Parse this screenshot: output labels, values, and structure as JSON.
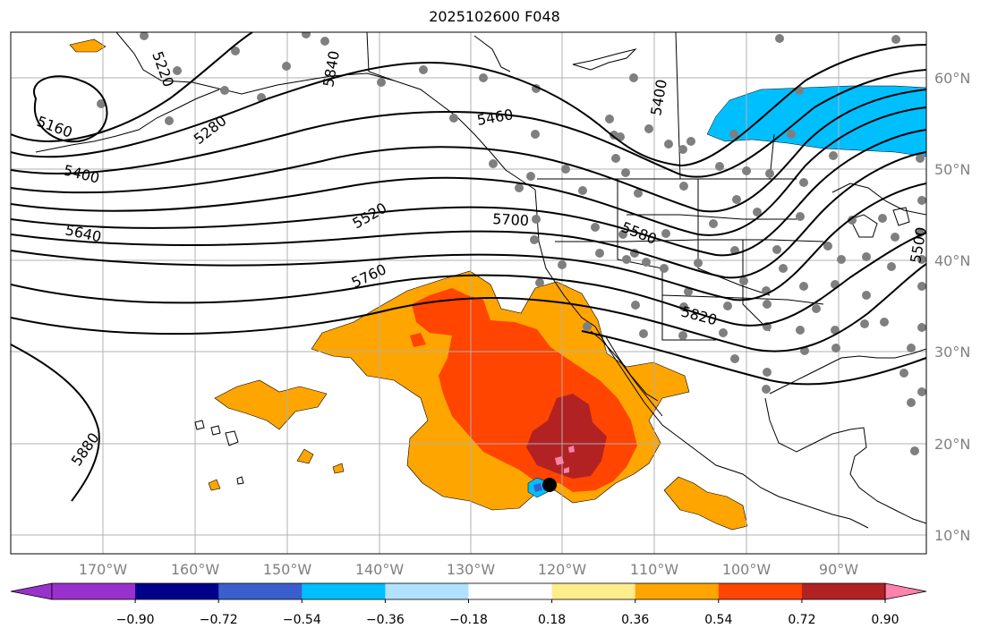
{
  "title": "2025102600 F048",
  "lon_ticks": [
    "170°W",
    "160°W",
    "150°W",
    "140°W",
    "130°W",
    "120°W",
    "110°W",
    "100°W",
    "90°W"
  ],
  "lat_ticks": [
    "60°N",
    "50°N",
    "40°N",
    "30°N",
    "20°N",
    "10°N"
  ],
  "colorbar": {
    "colors": [
      "#9932CC",
      "#00008B",
      "#3A5FCD",
      "#00BFFF",
      "#B0E2FF",
      "#FFFFFF",
      "#FFEC8B",
      "#FFA500",
      "#FF4500",
      "#B22222",
      "#FF82AB"
    ],
    "tick_labels": [
      "−0.90",
      "−0.72",
      "−0.54",
      "−0.36",
      "−0.18",
      "0.18",
      "0.36",
      "0.54",
      "0.72",
      "0.90"
    ]
  },
  "contour_labels": [
    "5160",
    "5280",
    "5220",
    "5840",
    "5400",
    "5460",
    "5400",
    "5520",
    "5700",
    "5580",
    "5500",
    "5640",
    "5760",
    "5820",
    "5880"
  ]
}
